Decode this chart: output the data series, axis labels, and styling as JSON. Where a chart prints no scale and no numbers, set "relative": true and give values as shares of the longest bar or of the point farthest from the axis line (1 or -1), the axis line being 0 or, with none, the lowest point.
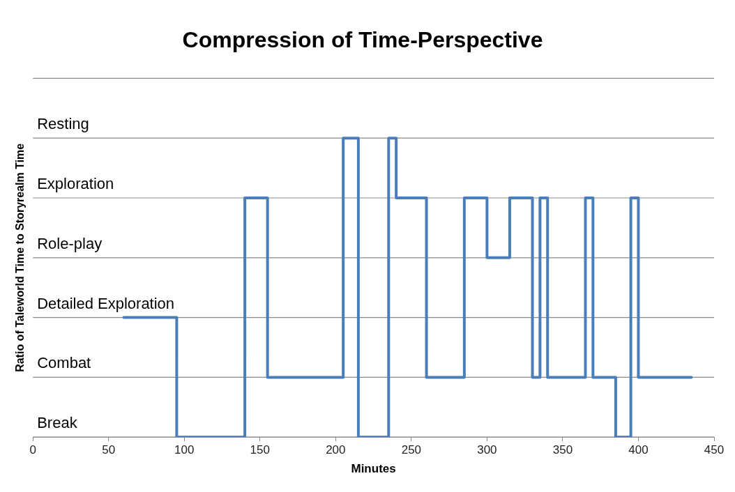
{
  "chart_data": {
    "type": "step",
    "title": "Compression of Time-Perspective",
    "xlabel": "Minutes",
    "ylabel": "Ratio of Taleworld Time to Storyrealm Time",
    "relative": true,
    "x": [
      60,
      95,
      140,
      155,
      205,
      215,
      235,
      240,
      260,
      285,
      300,
      315,
      330,
      335,
      340,
      365,
      370,
      385,
      395,
      400,
      435
    ],
    "series": [
      {
        "color": "#4a7ebb",
        "values": [
          0.4,
          0,
          0.8,
          0.2,
          1,
          0,
          1,
          0.8,
          0.2,
          0.8,
          0.6,
          0.8,
          0.2,
          0.8,
          0.2,
          0.8,
          0.2,
          0,
          0.8,
          0.2,
          0.2
        ]
      }
    ],
    "xlim": [
      0,
      450
    ],
    "xticks": [
      0,
      50,
      100,
      150,
      200,
      250,
      300,
      350,
      400,
      450
    ],
    "ref_lines": [
      {
        "axis": "y",
        "value": 0,
        "label": "Break",
        "color": "#888888"
      },
      {
        "axis": "y",
        "value": 0.2,
        "label": "Combat",
        "color": "#888888"
      },
      {
        "axis": "y",
        "value": 0.4,
        "label": "Detailed Exploration",
        "color": "#888888"
      },
      {
        "axis": "y",
        "value": 0.6,
        "label": "Role-play",
        "color": "#888888"
      },
      {
        "axis": "y",
        "value": 0.8,
        "label": "Exploration",
        "color": "#888888"
      },
      {
        "axis": "y",
        "value": 1,
        "label": "Resting",
        "color": "#888888"
      },
      {
        "axis": "y",
        "value": 1.2,
        "label": null,
        "color": "#888888"
      }
    ],
    "legend": false,
    "marker": "none",
    "line_style": "solid"
  }
}
